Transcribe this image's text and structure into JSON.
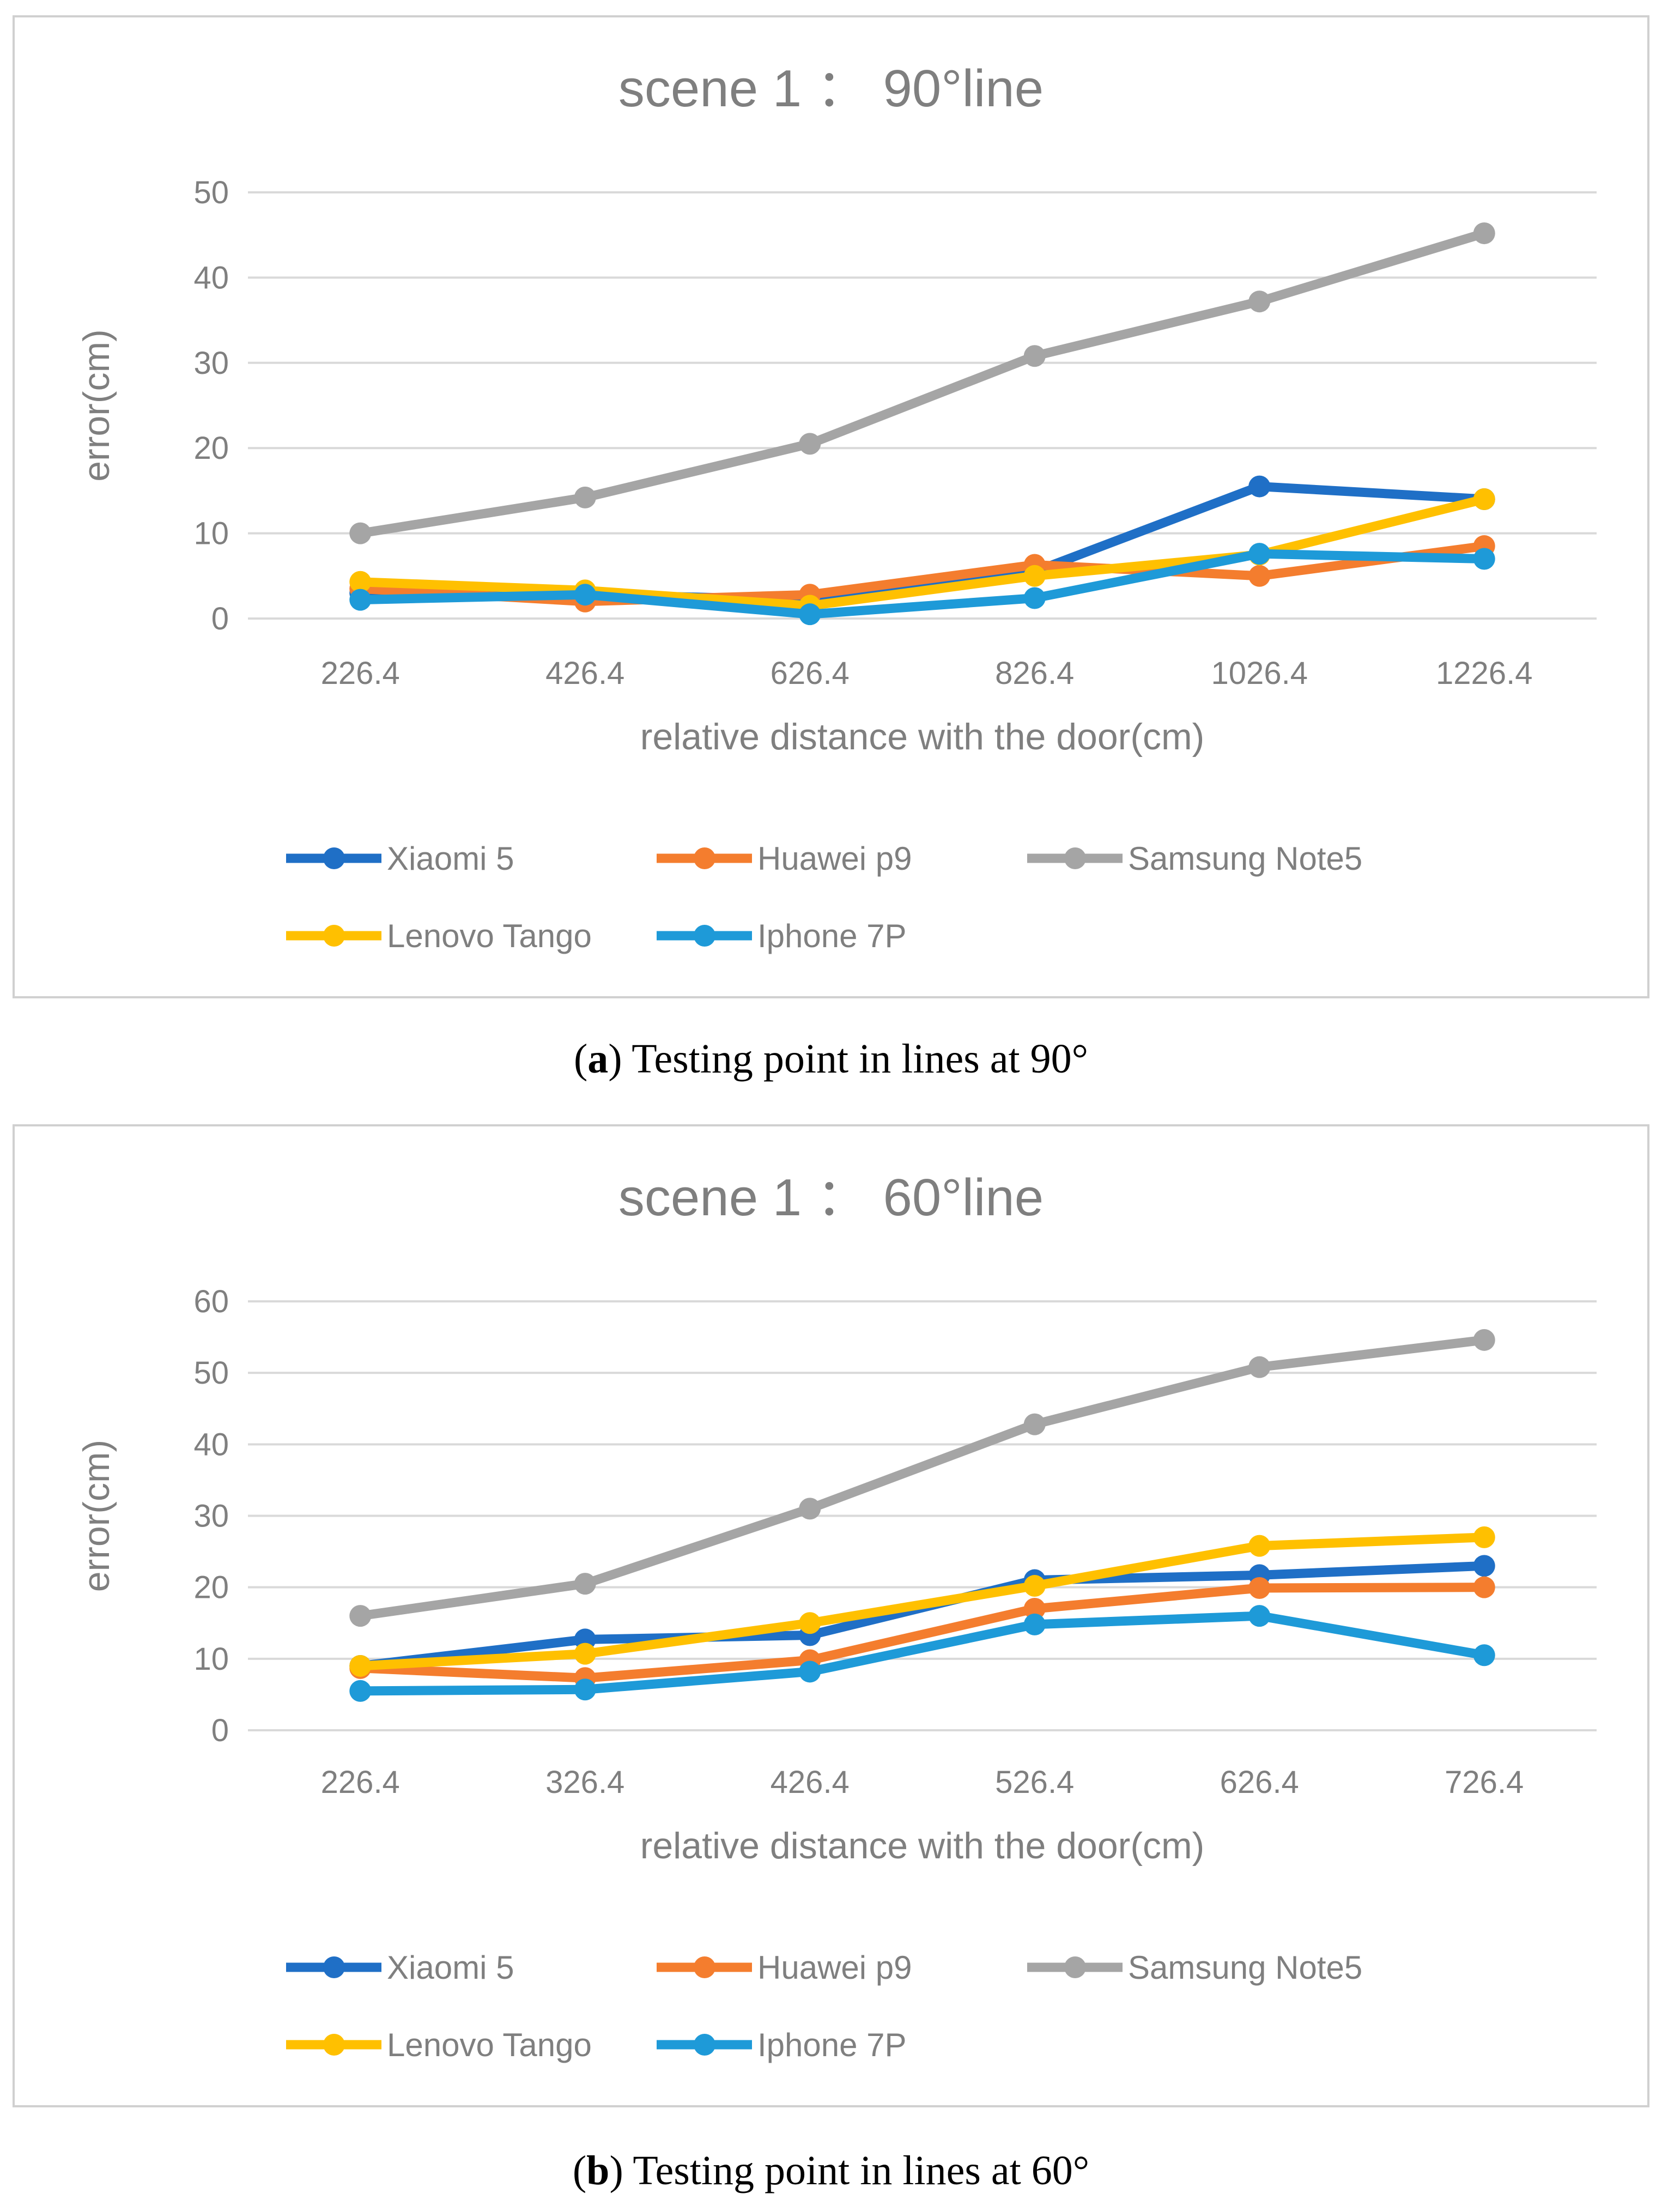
{
  "colors": {
    "xiaomi": "#1F6FC6",
    "huawei": "#F47D2E",
    "samsung": "#A5A5A5",
    "lenovo": "#FFC000",
    "iphone": "#1E9AD8",
    "grid": "#D9D9D9",
    "text": "#7F7F7F",
    "frame": "#D0D0D0"
  },
  "chart_data": [
    {
      "type": "line",
      "title": "scene 1 ： 90°line",
      "xlabel": "relative distance with the door(cm)",
      "ylabel": "error(cm)",
      "categories": [
        "226.4",
        "426.4",
        "626.4",
        "826.4",
        "1026.4",
        "1226.4"
      ],
      "yticks": [
        "0",
        "10",
        "20",
        "30",
        "40",
        "50"
      ],
      "ylim": [
        0,
        50
      ],
      "grid": true,
      "legend_position": "bottom",
      "series": [
        {
          "name": "Xiaomi 5",
          "color_key": "xiaomi",
          "values": [
            3.0,
            2.8,
            2.2,
            5.5,
            15.5,
            14.0
          ]
        },
        {
          "name": "Huawei p9",
          "color_key": "huawei",
          "values": [
            3.5,
            2.0,
            2.8,
            6.3,
            5.0,
            8.5
          ]
        },
        {
          "name": "Samsung Note5",
          "color_key": "samsung",
          "values": [
            10.0,
            14.2,
            20.5,
            30.8,
            37.2,
            45.2
          ]
        },
        {
          "name": "Lenovo Tango",
          "color_key": "lenovo",
          "values": [
            4.3,
            3.3,
            1.5,
            5.0,
            7.5,
            14.0
          ]
        },
        {
          "name": "Iphone 7P",
          "color_key": "iphone",
          "values": [
            2.2,
            2.8,
            0.5,
            2.4,
            7.6,
            7.0
          ]
        }
      ]
    },
    {
      "type": "line",
      "title": "scene 1 ： 60°line",
      "xlabel": "relative distance with the door(cm)",
      "ylabel": "error(cm)",
      "categories": [
        "226.4",
        "326.4",
        "426.4",
        "526.4",
        "626.4",
        "726.4"
      ],
      "yticks": [
        "0",
        "10",
        "20",
        "30",
        "40",
        "50",
        "60"
      ],
      "ylim": [
        0,
        60
      ],
      "grid": true,
      "legend_position": "bottom",
      "series": [
        {
          "name": "Xiaomi 5",
          "color_key": "xiaomi",
          "values": [
            9.0,
            12.7,
            13.3,
            21.0,
            21.7,
            23.0
          ]
        },
        {
          "name": "Huawei p9",
          "color_key": "huawei",
          "values": [
            8.7,
            7.3,
            9.8,
            17.0,
            19.9,
            20.0
          ]
        },
        {
          "name": "Samsung Note5",
          "color_key": "samsung",
          "values": [
            16.0,
            20.5,
            31.0,
            42.8,
            50.8,
            54.6
          ]
        },
        {
          "name": "Lenovo Tango",
          "color_key": "lenovo",
          "values": [
            9.0,
            10.7,
            15.0,
            20.2,
            25.8,
            27.0
          ]
        },
        {
          "name": "Iphone 7P",
          "color_key": "iphone",
          "values": [
            5.5,
            5.7,
            8.2,
            14.8,
            16.0,
            10.5
          ]
        }
      ]
    }
  ],
  "captions": [
    {
      "letter": "a",
      "rest": ") Testing point in lines at 90°"
    },
    {
      "letter": "b",
      "rest": ") Testing point in lines at 60°"
    }
  ]
}
